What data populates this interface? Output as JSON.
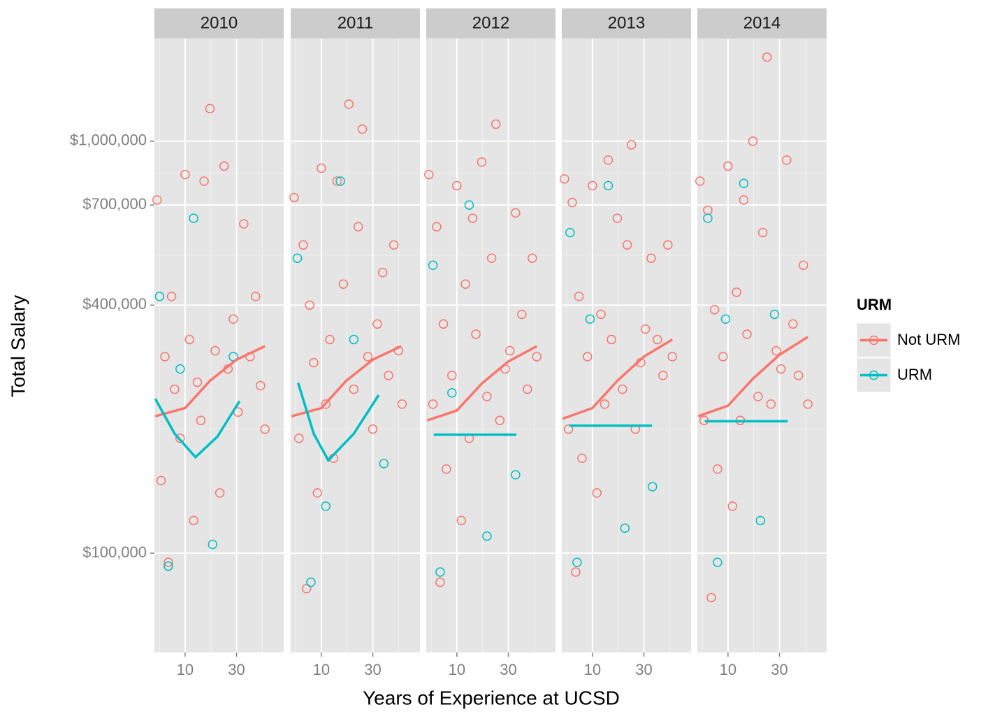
{
  "chart_data": {
    "type": "scatter",
    "facets": [
      "2010",
      "2011",
      "2012",
      "2013",
      "2014"
    ],
    "x_label": "Years of Experience at UCSD",
    "y_label": "Total Salary",
    "legend_title": "URM",
    "log_x": true,
    "log_y": true,
    "grid": true,
    "legend_position": "right",
    "xlim": [
      5.2,
      82
    ],
    "ylim": [
      57400,
      1776000
    ],
    "xticks": [
      10,
      30
    ],
    "yticks": [
      {
        "value": 100000,
        "label": "$100,000"
      },
      {
        "value": 400000,
        "label": "$400,000"
      },
      {
        "value": 700000,
        "label": "$700,000"
      },
      {
        "value": 1000000,
        "label": "$1,000,000"
      }
    ],
    "series": [
      {
        "name": "Not URM",
        "color": "#f8766d",
        "facets": [
          {
            "x": [
              5.5,
              6,
              6.5,
              7,
              7.5,
              8,
              9,
              10,
              11,
              12,
              13,
              14,
              15,
              17,
              19,
              21,
              23,
              25,
              28,
              31,
              35,
              40,
              45,
              50,
              55
            ],
            "y": [
              720000,
              150000,
              300000,
              95000,
              420000,
              250000,
              190000,
              830000,
              330000,
              120000,
              260000,
              210000,
              800000,
              1200000,
              310000,
              140000,
              870000,
              280000,
              370000,
              220000,
              630000,
              300000,
              420000,
              255000,
              200000
            ],
            "fit_x": [
              5.3,
              10,
              17,
              30,
              55
            ],
            "fit_y": [
              215000,
              225000,
              262000,
              295000,
              318000
            ]
          },
          {
            "x": [
              5.6,
              6.2,
              6.8,
              7.3,
              7.8,
              8.5,
              9.2,
              10,
              11,
              12,
              13,
              14,
              16,
              18,
              20,
              22,
              24,
              27,
              30,
              33,
              37,
              42,
              47,
              52,
              56
            ],
            "y": [
              730000,
              190000,
              560000,
              82000,
              400000,
              290000,
              140000,
              860000,
              230000,
              330000,
              170000,
              800000,
              450000,
              1230000,
              250000,
              620000,
              1070000,
              300000,
              200000,
              360000,
              480000,
              270000,
              560000,
              310000,
              230000
            ],
            "fit_x": [
              5.3,
              10,
              17,
              30,
              55
            ],
            "fit_y": [
              215000,
              225000,
              262000,
              295000,
              318000
            ]
          },
          {
            "x": [
              5.5,
              6,
              6.5,
              7,
              7.5,
              8,
              9,
              10,
              11,
              12,
              13,
              14,
              15,
              17,
              19,
              21,
              23,
              25,
              28,
              31,
              35,
              40,
              45,
              50,
              55
            ],
            "y": [
              830000,
              230000,
              620000,
              85000,
              360000,
              160000,
              270000,
              780000,
              120000,
              450000,
              190000,
              650000,
              340000,
              890000,
              240000,
              520000,
              1100000,
              210000,
              280000,
              310000,
              670000,
              380000,
              250000,
              520000,
              300000
            ],
            "fit_x": [
              5.3,
              10,
              17,
              30,
              55
            ],
            "fit_y": [
              210000,
              222000,
              258000,
              292000,
              318000
            ]
          },
          {
            "x": [
              5.5,
              6,
              6.5,
              7,
              7.5,
              8,
              9,
              10,
              11,
              12,
              13,
              14,
              15,
              17,
              19,
              21,
              23,
              25,
              28,
              31,
              35,
              40,
              45,
              50,
              55
            ],
            "y": [
              810000,
              200000,
              710000,
              90000,
              420000,
              170000,
              300000,
              780000,
              140000,
              380000,
              230000,
              900000,
              330000,
              650000,
              250000,
              560000,
              980000,
              200000,
              290000,
              350000,
              520000,
              330000,
              270000,
              560000,
              300000
            ],
            "fit_x": [
              5.3,
              10,
              17,
              30,
              55
            ],
            "fit_y": [
              212000,
              225000,
              262000,
              300000,
              330000
            ]
          },
          {
            "x": [
              5.5,
              6,
              6.5,
              7,
              7.5,
              8,
              9,
              10,
              11,
              12,
              13,
              14,
              15,
              17,
              19,
              21,
              23,
              25,
              28,
              31,
              35,
              40,
              45,
              50,
              55
            ],
            "y": [
              800000,
              210000,
              680000,
              78000,
              390000,
              160000,
              300000,
              870000,
              130000,
              430000,
              210000,
              720000,
              340000,
              1000000,
              240000,
              600000,
              1600000,
              230000,
              310000,
              280000,
              900000,
              360000,
              270000,
              500000,
              230000
            ],
            "fit_x": [
              5.3,
              10,
              17,
              30,
              55
            ],
            "fit_y": [
              215000,
              228000,
              265000,
              303000,
              335000
            ]
          }
        ]
      },
      {
        "name": "URM",
        "color": "#00bfc4",
        "facets": [
          {
            "x": [
              5.8,
              7,
              9,
              12,
              18,
              28
            ],
            "y": [
              420000,
              93000,
              280000,
              650000,
              105000,
              300000
            ],
            "fit_x": [
              5.3,
              8,
              12.5,
              20,
              32
            ],
            "fit_y": [
              237000,
              195000,
              171000,
              192000,
              234000
            ]
          },
          {
            "x": [
              6,
              8,
              11,
              15,
              20,
              38
            ],
            "y": [
              520000,
              85000,
              130000,
              800000,
              330000,
              165000
            ],
            "fit_x": [
              6.1,
              8.5,
              11.6,
              20,
              34
            ],
            "fit_y": [
              259000,
              195000,
              168000,
              195000,
              242000
            ]
          },
          {
            "x": [
              6,
              7,
              9,
              13,
              19,
              35
            ],
            "y": [
              500000,
              90000,
              245000,
              700000,
              110000,
              155000
            ],
            "fit_x": [
              6.1,
              35.7
            ],
            "fit_y": [
              194000,
              194000
            ]
          },
          {
            "x": [
              6.2,
              7.2,
              9.5,
              14,
              20,
              36
            ],
            "y": [
              600000,
              95000,
              370000,
              780000,
              115000,
              145000
            ],
            "fit_x": [
              6.1,
              35.7
            ],
            "fit_y": [
              204000,
              204000
            ]
          },
          {
            "x": [
              6.5,
              8,
              9.5,
              14,
              20,
              27
            ],
            "y": [
              650000,
              95000,
              370000,
              790000,
              120000,
              380000
            ],
            "fit_x": [
              6.1,
              35.7
            ],
            "fit_y": [
              209000,
              209000
            ]
          }
        ]
      }
    ]
  }
}
